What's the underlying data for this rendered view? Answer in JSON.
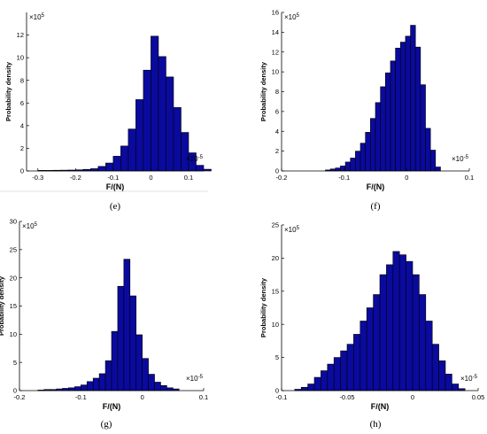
{
  "chart_data": [
    {
      "type": "bar",
      "caption": "(e)",
      "xlabel": "F/(N)",
      "ylabel": "Probability density",
      "x_exponent": "×10-5",
      "y_exponent": "×105",
      "xlim": [
        -0.33,
        0.14
      ],
      "ylim": [
        0,
        14
      ],
      "xticks": [
        "-0.3",
        "-0.2",
        "-0.1",
        "0",
        "0.1"
      ],
      "yticks": [
        "0",
        "2",
        "4",
        "6",
        "8",
        "10",
        "12"
      ],
      "bin_width": 0.02,
      "bins": [
        [
          -0.3,
          0.05
        ],
        [
          -0.28,
          0.05
        ],
        [
          -0.26,
          0.06
        ],
        [
          -0.24,
          0.07
        ],
        [
          -0.22,
          0.08
        ],
        [
          -0.2,
          0.1
        ],
        [
          -0.18,
          0.14
        ],
        [
          -0.16,
          0.2
        ],
        [
          -0.14,
          0.4
        ],
        [
          -0.12,
          0.7
        ],
        [
          -0.1,
          1.3
        ],
        [
          -0.08,
          2.2
        ],
        [
          -0.06,
          3.7
        ],
        [
          -0.04,
          6.3
        ],
        [
          -0.02,
          8.9
        ],
        [
          0,
          11.9
        ],
        [
          0.02,
          10.1
        ],
        [
          0.04,
          8.3
        ],
        [
          0.06,
          5.6
        ],
        [
          0.08,
          3.4
        ],
        [
          0.1,
          1.6
        ],
        [
          0.12,
          0.5
        ],
        [
          0.14,
          0.15
        ]
      ]
    },
    {
      "type": "bar",
      "caption": "(f)",
      "xlabel": "F/(N)",
      "ylabel": "Probability density",
      "x_exponent": "×10-5",
      "y_exponent": "×105",
      "xlim": [
        -0.2,
        0.1
      ],
      "ylim": [
        0,
        16
      ],
      "xticks": [
        "-0.2",
        "-0.1",
        "0",
        "0.1"
      ],
      "yticks": [
        "0",
        "2",
        "4",
        "6",
        "8",
        "10",
        "12",
        "14",
        "16"
      ],
      "bin_width": 0.008,
      "bins": [
        [
          -0.13,
          0.1
        ],
        [
          -0.122,
          0.2
        ],
        [
          -0.114,
          0.3
        ],
        [
          -0.106,
          0.5
        ],
        [
          -0.098,
          0.9
        ],
        [
          -0.09,
          1.3
        ],
        [
          -0.082,
          2.0
        ],
        [
          -0.074,
          2.8
        ],
        [
          -0.066,
          3.9
        ],
        [
          -0.058,
          5.3
        ],
        [
          -0.05,
          6.9
        ],
        [
          -0.042,
          8.5
        ],
        [
          -0.034,
          9.9
        ],
        [
          -0.026,
          11.1
        ],
        [
          -0.018,
          12.4
        ],
        [
          -0.01,
          13.0
        ],
        [
          -0.002,
          13.6
        ],
        [
          0.006,
          14.7
        ],
        [
          0.014,
          12.5
        ],
        [
          0.022,
          8.7
        ],
        [
          0.03,
          4.3
        ],
        [
          0.038,
          2.1
        ],
        [
          0.046,
          0.4
        ]
      ]
    },
    {
      "type": "bar",
      "caption": "(g)",
      "xlabel": "F/(N)",
      "ylabel": "Probability density",
      "x_exponent": "×10-5",
      "y_exponent": "×105",
      "xlim": [
        -0.2,
        0.1
      ],
      "ylim": [
        0,
        30
      ],
      "xticks": [
        "-0.2",
        "-0.1",
        "0",
        "0.1"
      ],
      "yticks": [
        "0",
        "5",
        "10",
        "15",
        "20",
        "25",
        "30"
      ],
      "bin_width": 0.01,
      "bins": [
        [
          -0.17,
          0.1
        ],
        [
          -0.16,
          0.2
        ],
        [
          -0.15,
          0.2
        ],
        [
          -0.14,
          0.3
        ],
        [
          -0.13,
          0.4
        ],
        [
          -0.12,
          0.5
        ],
        [
          -0.11,
          0.7
        ],
        [
          -0.1,
          1.0
        ],
        [
          -0.09,
          1.6
        ],
        [
          -0.08,
          2.2
        ],
        [
          -0.07,
          3.0
        ],
        [
          -0.06,
          5.3
        ],
        [
          -0.05,
          10.5
        ],
        [
          -0.04,
          18.5
        ],
        [
          -0.03,
          23.3
        ],
        [
          -0.02,
          16.8
        ],
        [
          -0.01,
          9.9
        ],
        [
          0,
          5.7
        ],
        [
          0.01,
          2.9
        ],
        [
          0.02,
          1.5
        ],
        [
          0.03,
          0.9
        ],
        [
          0.04,
          0.5
        ],
        [
          0.05,
          0.3
        ]
      ]
    },
    {
      "type": "bar",
      "caption": "(h)",
      "xlabel": "F/(N)",
      "ylabel": "Probability density",
      "x_exponent": "×10-5",
      "y_exponent": "×105",
      "xlim": [
        -0.1,
        0.05
      ],
      "ylim": [
        0,
        25
      ],
      "xticks": [
        "-0.1",
        "-0.05",
        "0",
        "0.05"
      ],
      "yticks": [
        "0",
        "5",
        "10",
        "15",
        "20",
        "25"
      ],
      "bin_width": 0.005,
      "bins": [
        [
          -0.09,
          0.2
        ],
        [
          -0.085,
          0.5
        ],
        [
          -0.08,
          1.0
        ],
        [
          -0.075,
          2.0
        ],
        [
          -0.07,
          3.0
        ],
        [
          -0.065,
          4.0
        ],
        [
          -0.06,
          5.0
        ],
        [
          -0.055,
          6.0
        ],
        [
          -0.05,
          7.0
        ],
        [
          -0.045,
          8.5
        ],
        [
          -0.04,
          10.5
        ],
        [
          -0.035,
          12.5
        ],
        [
          -0.03,
          14.5
        ],
        [
          -0.025,
          17.5
        ],
        [
          -0.02,
          19.0
        ],
        [
          -0.015,
          21.0
        ],
        [
          -0.01,
          20.5
        ],
        [
          -0.005,
          19.5
        ],
        [
          0,
          17.5
        ],
        [
          0.005,
          14.5
        ],
        [
          0.01,
          10.5
        ],
        [
          0.015,
          7.0
        ],
        [
          0.02,
          4.5
        ],
        [
          0.025,
          2.5
        ],
        [
          0.03,
          1.0
        ],
        [
          0.035,
          0.3
        ]
      ]
    }
  ],
  "colors": {
    "bar_fill": "#0a0a9e",
    "bar_edge": "#000000"
  }
}
